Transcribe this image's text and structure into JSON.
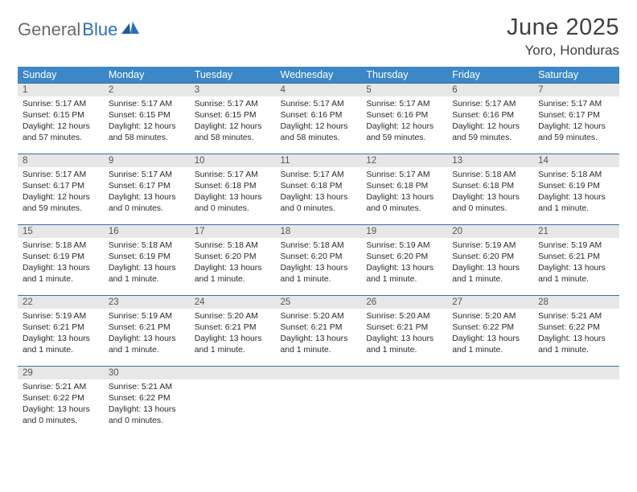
{
  "logo": {
    "text1": "General",
    "text2": "Blue"
  },
  "header": {
    "month_title": "June 2025",
    "location": "Yoro, Honduras"
  },
  "colors": {
    "header_bg": "#3b87c8",
    "header_fg": "#ffffff",
    "row_border": "#3b6fa3",
    "daynum_bg": "#e7e7e7",
    "daynum_fg": "#555555",
    "text": "#2a2a2a",
    "logo_gray": "#6b6b6b",
    "logo_blue": "#2d6fb8"
  },
  "day_names": [
    "Sunday",
    "Monday",
    "Tuesday",
    "Wednesday",
    "Thursday",
    "Friday",
    "Saturday"
  ],
  "weeks": [
    [
      {
        "num": "1",
        "sunrise": "5:17 AM",
        "sunset": "6:15 PM",
        "daylight": "12 hours and 57 minutes."
      },
      {
        "num": "2",
        "sunrise": "5:17 AM",
        "sunset": "6:15 PM",
        "daylight": "12 hours and 58 minutes."
      },
      {
        "num": "3",
        "sunrise": "5:17 AM",
        "sunset": "6:15 PM",
        "daylight": "12 hours and 58 minutes."
      },
      {
        "num": "4",
        "sunrise": "5:17 AM",
        "sunset": "6:16 PM",
        "daylight": "12 hours and 58 minutes."
      },
      {
        "num": "5",
        "sunrise": "5:17 AM",
        "sunset": "6:16 PM",
        "daylight": "12 hours and 59 minutes."
      },
      {
        "num": "6",
        "sunrise": "5:17 AM",
        "sunset": "6:16 PM",
        "daylight": "12 hours and 59 minutes."
      },
      {
        "num": "7",
        "sunrise": "5:17 AM",
        "sunset": "6:17 PM",
        "daylight": "12 hours and 59 minutes."
      }
    ],
    [
      {
        "num": "8",
        "sunrise": "5:17 AM",
        "sunset": "6:17 PM",
        "daylight": "12 hours and 59 minutes."
      },
      {
        "num": "9",
        "sunrise": "5:17 AM",
        "sunset": "6:17 PM",
        "daylight": "13 hours and 0 minutes."
      },
      {
        "num": "10",
        "sunrise": "5:17 AM",
        "sunset": "6:18 PM",
        "daylight": "13 hours and 0 minutes."
      },
      {
        "num": "11",
        "sunrise": "5:17 AM",
        "sunset": "6:18 PM",
        "daylight": "13 hours and 0 minutes."
      },
      {
        "num": "12",
        "sunrise": "5:17 AM",
        "sunset": "6:18 PM",
        "daylight": "13 hours and 0 minutes."
      },
      {
        "num": "13",
        "sunrise": "5:18 AM",
        "sunset": "6:18 PM",
        "daylight": "13 hours and 0 minutes."
      },
      {
        "num": "14",
        "sunrise": "5:18 AM",
        "sunset": "6:19 PM",
        "daylight": "13 hours and 1 minute."
      }
    ],
    [
      {
        "num": "15",
        "sunrise": "5:18 AM",
        "sunset": "6:19 PM",
        "daylight": "13 hours and 1 minute."
      },
      {
        "num": "16",
        "sunrise": "5:18 AM",
        "sunset": "6:19 PM",
        "daylight": "13 hours and 1 minute."
      },
      {
        "num": "17",
        "sunrise": "5:18 AM",
        "sunset": "6:20 PM",
        "daylight": "13 hours and 1 minute."
      },
      {
        "num": "18",
        "sunrise": "5:18 AM",
        "sunset": "6:20 PM",
        "daylight": "13 hours and 1 minute."
      },
      {
        "num": "19",
        "sunrise": "5:19 AM",
        "sunset": "6:20 PM",
        "daylight": "13 hours and 1 minute."
      },
      {
        "num": "20",
        "sunrise": "5:19 AM",
        "sunset": "6:20 PM",
        "daylight": "13 hours and 1 minute."
      },
      {
        "num": "21",
        "sunrise": "5:19 AM",
        "sunset": "6:21 PM",
        "daylight": "13 hours and 1 minute."
      }
    ],
    [
      {
        "num": "22",
        "sunrise": "5:19 AM",
        "sunset": "6:21 PM",
        "daylight": "13 hours and 1 minute."
      },
      {
        "num": "23",
        "sunrise": "5:19 AM",
        "sunset": "6:21 PM",
        "daylight": "13 hours and 1 minute."
      },
      {
        "num": "24",
        "sunrise": "5:20 AM",
        "sunset": "6:21 PM",
        "daylight": "13 hours and 1 minute."
      },
      {
        "num": "25",
        "sunrise": "5:20 AM",
        "sunset": "6:21 PM",
        "daylight": "13 hours and 1 minute."
      },
      {
        "num": "26",
        "sunrise": "5:20 AM",
        "sunset": "6:21 PM",
        "daylight": "13 hours and 1 minute."
      },
      {
        "num": "27",
        "sunrise": "5:20 AM",
        "sunset": "6:22 PM",
        "daylight": "13 hours and 1 minute."
      },
      {
        "num": "28",
        "sunrise": "5:21 AM",
        "sunset": "6:22 PM",
        "daylight": "13 hours and 1 minute."
      }
    ],
    [
      {
        "num": "29",
        "sunrise": "5:21 AM",
        "sunset": "6:22 PM",
        "daylight": "13 hours and 0 minutes."
      },
      {
        "num": "30",
        "sunrise": "5:21 AM",
        "sunset": "6:22 PM",
        "daylight": "13 hours and 0 minutes."
      },
      null,
      null,
      null,
      null,
      null
    ]
  ],
  "labels": {
    "sunrise": "Sunrise:",
    "sunset": "Sunset:",
    "daylight": "Daylight:"
  }
}
